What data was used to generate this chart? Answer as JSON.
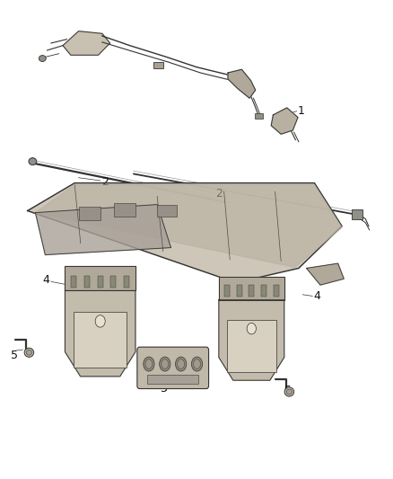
{
  "bg_color": "#ffffff",
  "line_color": "#333333",
  "part_fill": "#d0c8b8",
  "part_fill2": "#b8b0a0",
  "part_fill3": "#a8a098",
  "label_color": "#111111",
  "fig_width": 4.38,
  "fig_height": 5.33,
  "dpi": 100
}
